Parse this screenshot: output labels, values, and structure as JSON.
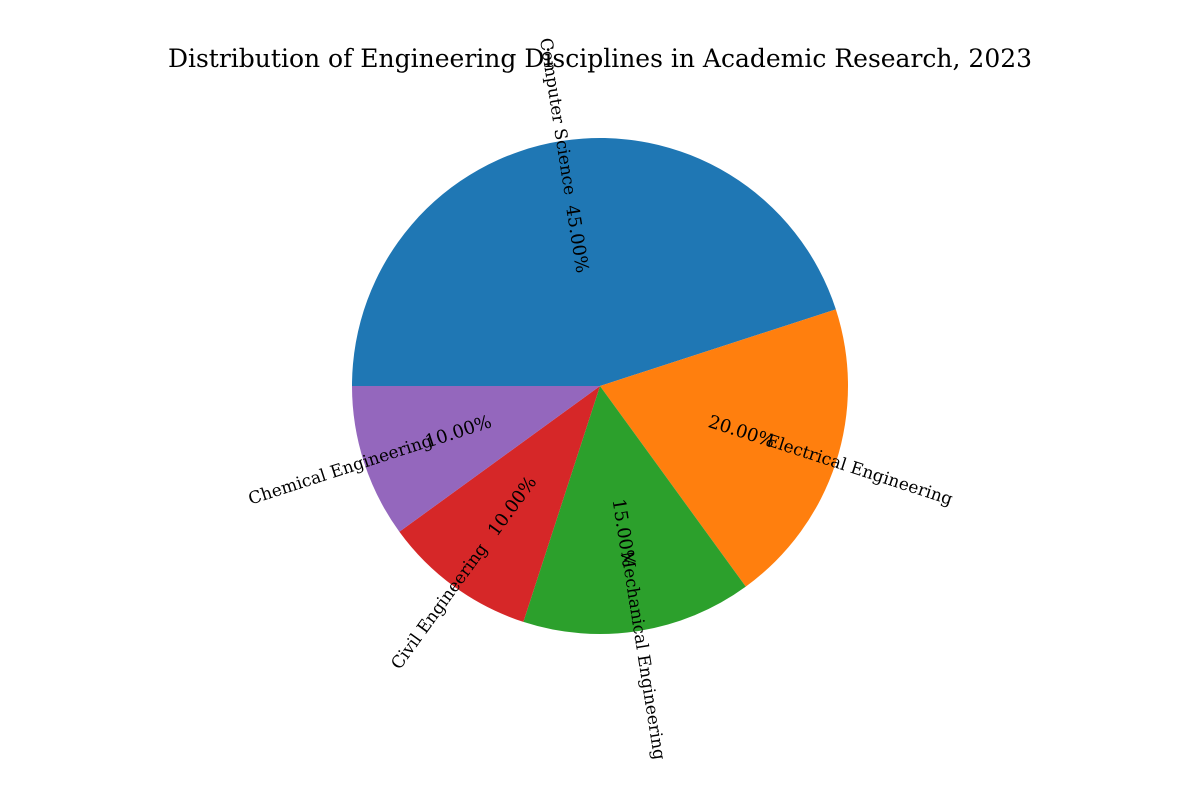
{
  "chart_data": {
    "type": "pie",
    "title": "Distribution of Engineering Disciplines in Academic Research, 2023",
    "categories": [
      "Computer Science",
      "Electrical Engineering",
      "Mechanical Engineering",
      "Civil Engineering",
      "Chemical Engineering"
    ],
    "values": [
      45,
      20,
      15,
      10,
      10
    ],
    "percent_labels": [
      "45.00%",
      "20.00%",
      "15.00%",
      "10.00%",
      "10.00%"
    ],
    "colors": [
      "#1f77b4",
      "#ff7f0e",
      "#2ca02c",
      "#d62728",
      "#9467bd"
    ],
    "start_angle_deg": 180,
    "direction": "clockwise",
    "legend": "none"
  }
}
